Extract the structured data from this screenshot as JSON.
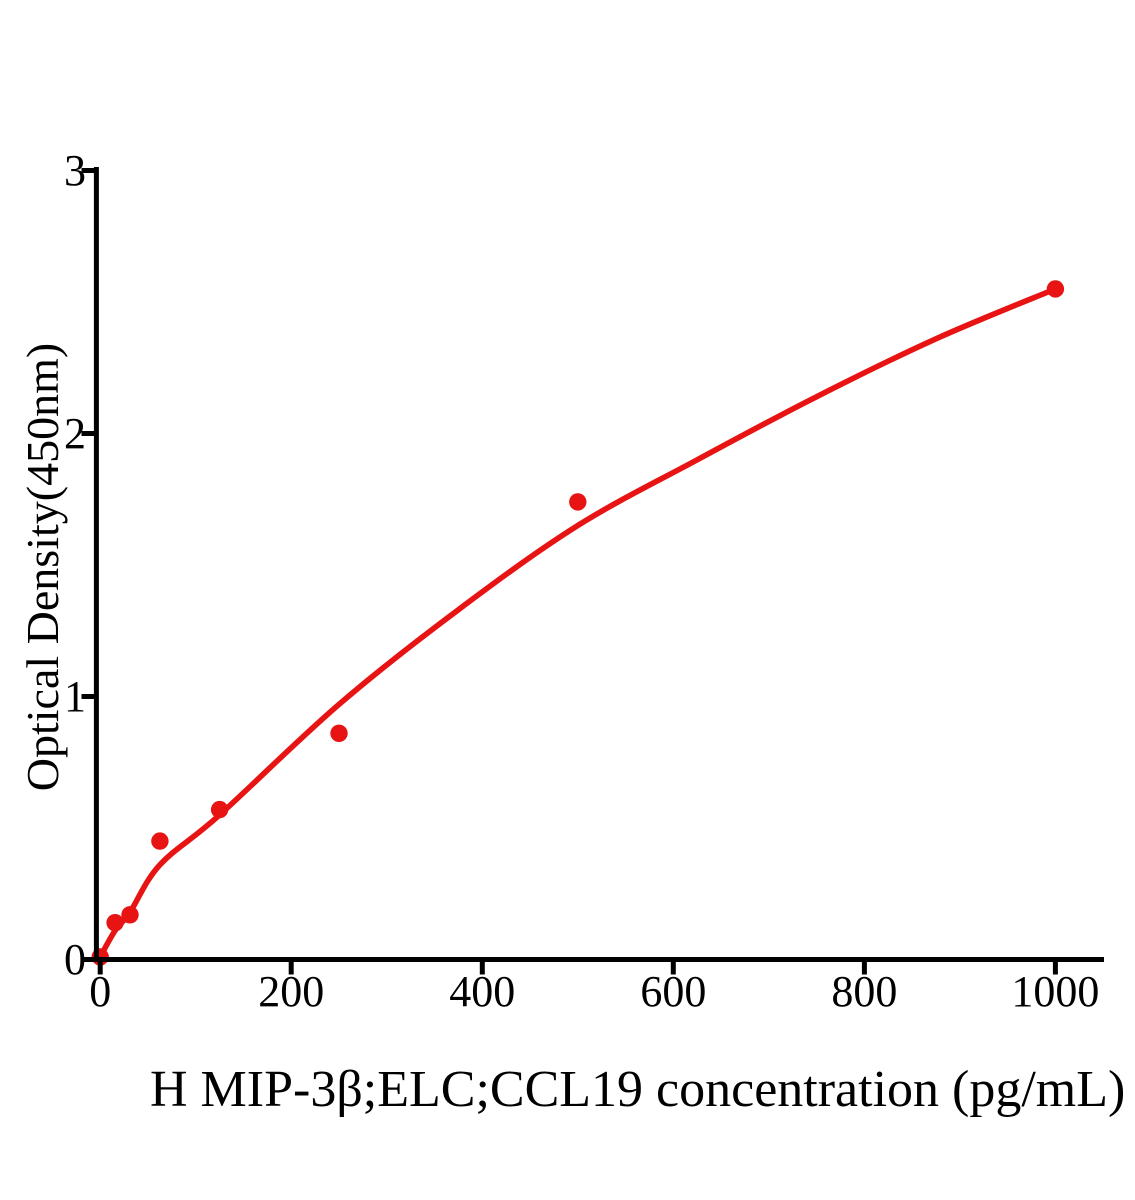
{
  "chart_data": {
    "type": "scatter",
    "title": "",
    "xlabel": "H MIP-3β;ELC;CCL19 concentration (pg/mL)",
    "ylabel": "Optical Density(450nm)",
    "x_ticks": [
      0,
      200,
      400,
      600,
      800,
      1000
    ],
    "y_ticks": [
      0,
      1,
      2,
      3
    ],
    "xlim": [
      0,
      1052
    ],
    "ylim": [
      0,
      3
    ],
    "grid": false,
    "legend": "none",
    "background_color": "#ffffff",
    "axis_color": "#000000",
    "accent_color": "#e81414",
    "series": [
      {
        "name": "standard-points",
        "kind": "scatter",
        "color": "#e81414",
        "marker": "circle",
        "marker_radius": 8.7,
        "x": [
          0,
          15.6,
          31.2,
          62.5,
          125,
          250,
          500,
          1000
        ],
        "y": [
          0.01,
          0.14,
          0.17,
          0.45,
          0.57,
          0.86,
          1.74,
          2.55
        ]
      },
      {
        "name": "fit-curve",
        "kind": "line",
        "color": "#e81414",
        "stroke_width": 5.6,
        "x": [
          0,
          15.6,
          31.2,
          62.5,
          125,
          250,
          375,
          500,
          625,
          750,
          875,
          1000
        ],
        "y": [
          0.01,
          0.11,
          0.18,
          0.36,
          0.55,
          0.97,
          1.33,
          1.65,
          1.9,
          2.14,
          2.36,
          2.55
        ]
      }
    ]
  }
}
